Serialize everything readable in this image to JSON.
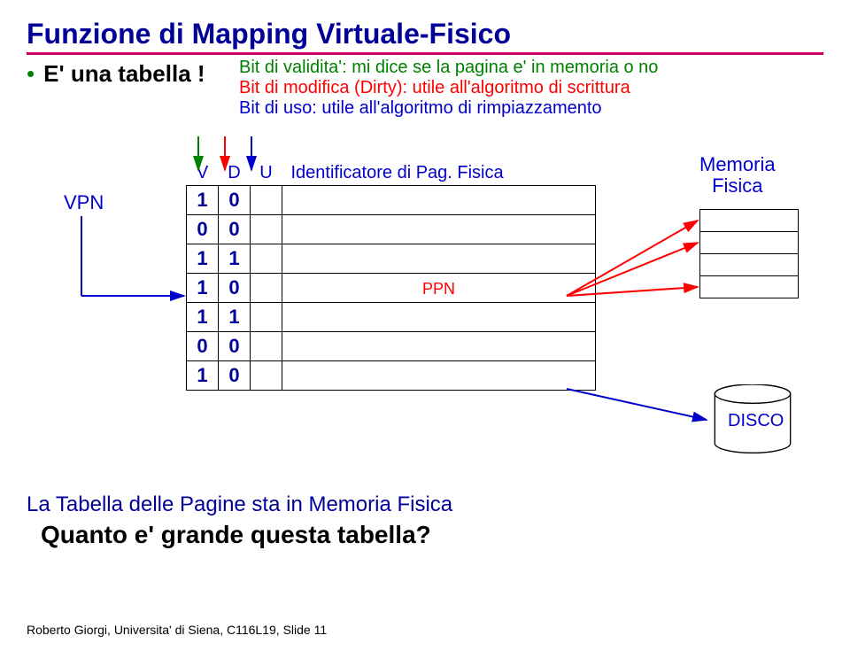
{
  "colors": {
    "title": "#000099",
    "underline": "#cc0066",
    "bullet": "#008000",
    "subtitle": "#000000",
    "desc1": "#008000",
    "desc2": "#ff0000",
    "desc3": "#0000cc",
    "table_header": "#0000cc",
    "table_text": "#000099",
    "vpn": "#0000cc",
    "mem": "#0000cc",
    "disk": "#0000cc",
    "ppn": "#ff0000",
    "bottom1": "#000099",
    "bottom2": "#000000",
    "arrow_green": "#008000",
    "arrow_red": "#ff0000",
    "arrow_blue": "#0000cc",
    "border": "#000000"
  },
  "title": "Funzione di Mapping Virtuale-Fisico",
  "subtitle": "E' una tabella !",
  "desc": {
    "line1": "Bit di validita': mi dice se la pagina e' in memoria o no",
    "line2": "Bit di modifica (Dirty): utile all'algoritmo di scrittura",
    "line3": "Bit di uso: utile all'algoritmo di rimpiazzamento"
  },
  "table": {
    "headers": {
      "v": "V",
      "d": "D",
      "u": "U",
      "id": "Identificatore di Pag. Fisica"
    },
    "rows": [
      {
        "v": "1",
        "d": "0",
        "ppn": false
      },
      {
        "v": "0",
        "d": "0",
        "ppn": false
      },
      {
        "v": "1",
        "d": "1",
        "ppn": false
      },
      {
        "v": "1",
        "d": "0",
        "ppn": true
      },
      {
        "v": "1",
        "d": "1",
        "ppn": false
      },
      {
        "v": "0",
        "d": "0",
        "ppn": false
      },
      {
        "v": "1",
        "d": "0",
        "ppn": false
      }
    ],
    "ppn_label": "PPN"
  },
  "vpn_label": "VPN",
  "memory": {
    "title_line1": "Memoria",
    "title_line2": "Fisica",
    "rows": 4
  },
  "disk_label": "DISCO",
  "bottom": {
    "line1": "La Tabella delle Pagine sta in Memoria Fisica",
    "line2": "Quanto e' grande questa tabella?"
  },
  "footer": "Roberto Giorgi, Universita' di Siena, C116L19, Slide 11"
}
